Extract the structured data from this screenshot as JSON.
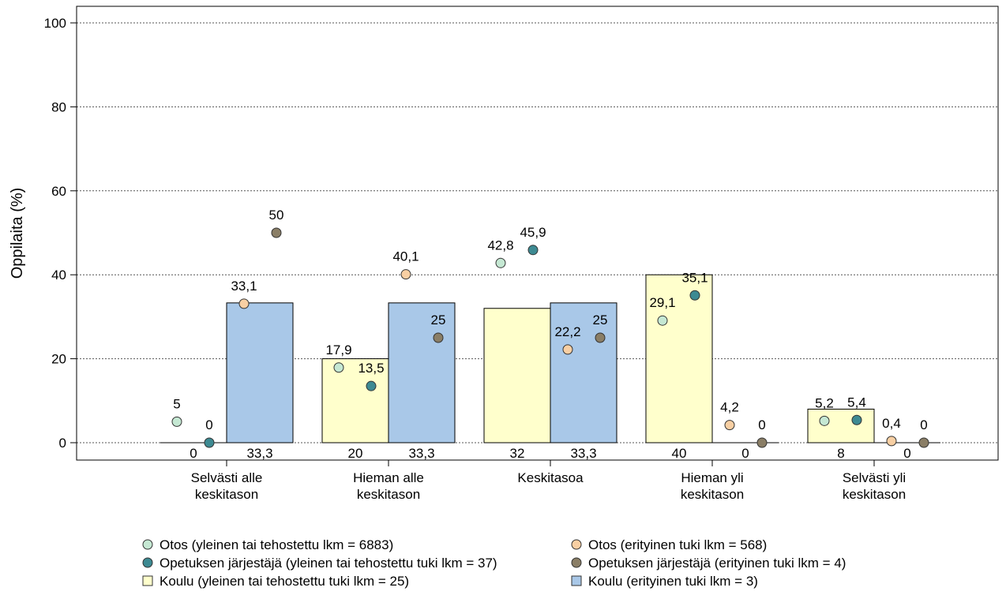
{
  "chart_data": {
    "type": "bar",
    "ylabel": "Oppilaita (%)",
    "ylim": [
      0,
      100
    ],
    "yticks": [
      0,
      20,
      40,
      60,
      80,
      100
    ],
    "ytick_labels": [
      "0",
      "20",
      "40",
      "60",
      "80",
      "100"
    ],
    "grid": "horizontal-dotted",
    "categories": [
      [
        "Selvästi alle",
        "keskitason"
      ],
      [
        "Hieman alle",
        "keskitason"
      ],
      [
        "Keskitasoa"
      ],
      [
        "Hieman yli",
        "keskitason"
      ],
      [
        "Selvästi yli",
        "keskitason"
      ]
    ],
    "bar_series": [
      {
        "name": "Koulu (yleinen tai tehostettu tuki lkm = 25)",
        "color": "#ffffcc",
        "values": [
          0,
          20,
          32,
          40,
          8
        ],
        "labels": [
          "0",
          "20",
          "32",
          "40",
          "8"
        ]
      },
      {
        "name": "Koulu (erityinen tuki lkm = 3)",
        "color": "#a9c8e8",
        "values": [
          33.3,
          33.3,
          33.3,
          0,
          0
        ],
        "labels": [
          "33,3",
          "33,3",
          "33,3",
          "0",
          "0"
        ]
      }
    ],
    "point_series": [
      {
        "name": "Otos (yleinen tai tehostettu lkm = 6883)",
        "color": "#c5e8d3",
        "slot": 0,
        "values": [
          5,
          17.9,
          42.8,
          29.1,
          5.2
        ],
        "labels": [
          "5",
          "17,9",
          "42,8",
          "29,1",
          "5,2"
        ]
      },
      {
        "name": "Opetuksen järjestäjä (yleinen tai tehostettu tuki lkm = 37)",
        "color": "#3d8a92",
        "slot": 1,
        "values": [
          0,
          13.5,
          45.9,
          35.1,
          5.4
        ],
        "labels": [
          "0",
          "13,5",
          "45,9",
          "35,1",
          "5,4"
        ]
      },
      {
        "name": "Otos (erityinen tuki lkm = 568)",
        "color": "#f8cfa3",
        "slot": 2,
        "values": [
          33.1,
          40.1,
          22.2,
          4.2,
          0.4
        ],
        "labels": [
          "33,1",
          "40,1",
          "22,2",
          "4,2",
          "0,4"
        ]
      },
      {
        "name": "Opetuksen järjestäjä (erityinen tuki lkm = 4)",
        "color": "#8a7e66",
        "slot": 3,
        "values": [
          50,
          25,
          25,
          0,
          0
        ],
        "labels": [
          "50",
          "25",
          "25",
          "0",
          "0"
        ]
      }
    ],
    "legend": {
      "placement": "bottom",
      "items": [
        {
          "label": "Otos (yleinen tai tehostettu lkm = 6883)",
          "shape": "circle",
          "color": "#c5e8d3"
        },
        {
          "label": "Otos (erityinen tuki lkm = 568)",
          "shape": "circle",
          "color": "#f8cfa3"
        },
        {
          "label": "Opetuksen järjestäjä (yleinen tai tehostettu tuki lkm = 37)",
          "shape": "circle",
          "color": "#3d8a92"
        },
        {
          "label": "Opetuksen järjestäjä (erityinen tuki lkm = 4)",
          "shape": "circle",
          "color": "#8a7e66"
        },
        {
          "label": "Koulu (yleinen tai tehostettu tuki lkm = 25)",
          "shape": "square",
          "color": "#ffffcc"
        },
        {
          "label": "Koulu (erityinen tuki lkm = 3)",
          "shape": "square",
          "color": "#a9c8e8"
        }
      ]
    }
  }
}
